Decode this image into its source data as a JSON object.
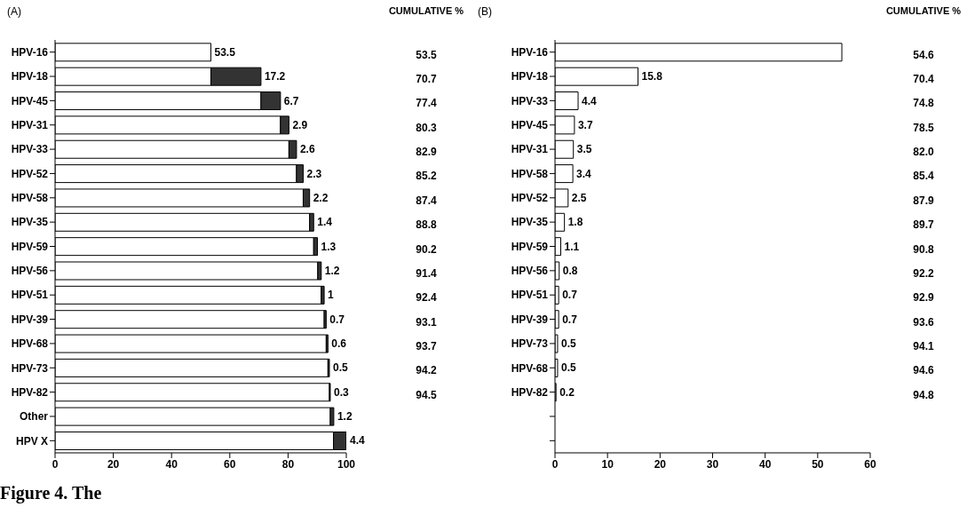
{
  "chart_data": [
    {
      "type": "bar",
      "orientation": "horizontal",
      "stacked": true,
      "title": "(A)",
      "categories": [
        "HPV-16",
        "HPV-18",
        "HPV-45",
        "HPV-31",
        "HPV-33",
        "HPV-52",
        "HPV-58",
        "HPV-35",
        "HPV-59",
        "HPV-56",
        "HPV-51",
        "HPV-39",
        "HPV-68",
        "HPV-73",
        "HPV-82",
        "Other",
        "HPV X"
      ],
      "series": [
        {
          "color": "#ffffff",
          "values": [
            53.5,
            53.5,
            70.7,
            77.4,
            80.3,
            82.9,
            85.2,
            87.4,
            88.8,
            90.2,
            91.4,
            92.4,
            93.1,
            93.7,
            94.2,
            94.5,
            95.6
          ],
          "value_labels": [
            "53.5",
            null,
            null,
            null,
            null,
            null,
            null,
            null,
            null,
            null,
            null,
            null,
            null,
            null,
            null,
            null,
            null
          ]
        },
        {
          "color": "#333333",
          "values": [
            null,
            17.2,
            6.7,
            2.9,
            2.6,
            2.3,
            2.2,
            1.4,
            1.3,
            1.2,
            1,
            0.7,
            0.6,
            0.5,
            0.3,
            1.2,
            4.4
          ],
          "value_labels": [
            null,
            "17.2",
            "6.7",
            "2.9",
            "2.6",
            "2.3",
            "2.2",
            "1.4",
            "1.3",
            "1.2",
            "1",
            "0.7",
            "0.6",
            "0.5",
            "0.3",
            "1.2",
            "4.4"
          ]
        }
      ],
      "xlim": [
        0,
        100
      ],
      "xticks": [
        0,
        20,
        40,
        60,
        80,
        100
      ],
      "grid": false,
      "legend": false,
      "annotations": [
        "CUMULATIVE %",
        "53.5",
        "70.7",
        "77.4",
        "80.3",
        "82.9",
        "85.2",
        "87.4",
        "88.8",
        "90.2",
        "91.4",
        "92.4",
        "93.1",
        "93.7",
        "94.2",
        "94.5",
        "Figure 4. The"
      ]
    },
    {
      "type": "bar",
      "orientation": "horizontal",
      "title": "(B)",
      "categories": [
        "HPV-16",
        "HPV-18",
        "HPV-33",
        "HPV-45",
        "HPV-31",
        "HPV-58",
        "HPV-52",
        "HPV-35",
        "HPV-59",
        "HPV-56",
        "HPV-51",
        "HPV-39",
        "HPV-73",
        "HPV-68",
        "HPV-82",
        null,
        null
      ],
      "series": [
        {
          "color": "#ffffff",
          "values": [
            54.6,
            15.8,
            4.4,
            3.7,
            3.5,
            3.4,
            2.5,
            1.8,
            1.1,
            0.8,
            0.7,
            0.7,
            0.5,
            0.5,
            0.2,
            null,
            null
          ],
          "value_labels": [
            null,
            "15.8",
            "4.4",
            "3.7",
            "3.5",
            "3.4",
            "2.5",
            "1.8",
            "1.1",
            "0.8",
            "0.7",
            "0.7",
            "0.5",
            "0.5",
            "0.2",
            null,
            null
          ]
        }
      ],
      "xlim": [
        0,
        60
      ],
      "xticks": [
        0,
        10,
        20,
        30,
        40,
        50,
        60
      ],
      "grid": false,
      "legend": false,
      "annotations": [
        "CUMULATIVE %",
        "54.6",
        "70.4",
        "74.8",
        "78.5",
        "82.0",
        "85.4",
        "87.9",
        "89.7",
        "90.8",
        "92.2",
        "92.9",
        "93.6",
        "94.1",
        "94.6",
        "94.8"
      ]
    }
  ]
}
